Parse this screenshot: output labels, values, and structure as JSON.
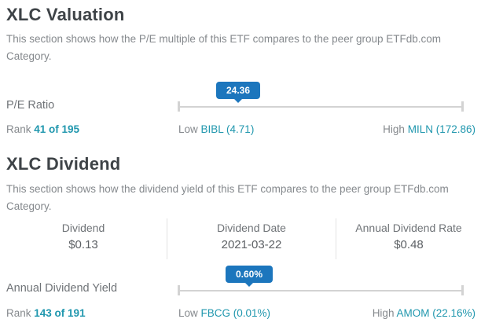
{
  "accent": {
    "badge_blue": "#1c76bd",
    "link_teal": "#2097ae"
  },
  "valuation": {
    "title": "XLC Valuation",
    "description": "This section shows how the P/E multiple of this ETF compares to the peer group ETFdb.com Category.",
    "metric_label": "P/E Ratio",
    "badge_value": "24.36",
    "rank_label": "Rank",
    "rank_value": "41 of 195",
    "low_label": "Low",
    "low_value": "BIBL (4.71)",
    "high_label": "High",
    "high_value": "MILN (172.86)"
  },
  "dividend": {
    "title": "XLC Dividend",
    "description": "This section shows how the dividend yield of this ETF compares to the peer group ETFdb.com Category.",
    "table": {
      "columns": [
        {
          "header": "Dividend",
          "value": "$0.13"
        },
        {
          "header": "Dividend Date",
          "value": "2021-03-22"
        },
        {
          "header": "Annual Dividend Rate",
          "value": "$0.48"
        }
      ]
    },
    "metric_label": "Annual Dividend Yield",
    "badge_value": "0.60%",
    "rank_label": "Rank",
    "rank_value": "143 of 191",
    "low_label": "Low",
    "low_value": "FBCG (0.01%)",
    "high_label": "High",
    "high_value": "AMOM (22.16%)"
  }
}
